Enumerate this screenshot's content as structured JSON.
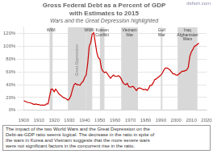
{
  "chart_data": {
    "type": "line",
    "title": [
      "Gross Federal Debt as a Percent of GDP",
      "with Estimates to 2015"
    ],
    "subtitle": "Wars and the Great Depression highlighted",
    "watermark": "dshort.com",
    "annotation": "The impact of the two World Wars and the Great Depression on the\nDebt-as-GDP ratio seems logical. The decrease in the ratio in spite of\nthe wars in Korea and Vietnam suggests that the more severe wars\nwere not significant factors in the concurrent rise in the ratio.",
    "color": "#cc0000",
    "span_color": "#d8d8d8",
    "spans": [
      {
        "start": 1917,
        "end": 1919,
        "label": "WWI"
      },
      {
        "start": 1929,
        "end": 1941,
        "label": "Great Depression"
      },
      {
        "start": 1941,
        "end": 1945,
        "label": "WWII"
      },
      {
        "start": 1950,
        "end": 1953,
        "label": "Korean\nConflict"
      },
      {
        "start": 1964,
        "end": 1975,
        "label": "Vietnam\nWar"
      },
      {
        "start": 1990,
        "end": 1991,
        "label": "Gulf\nWar"
      },
      {
        "start": 2001,
        "end": 2014,
        "label": "Iraq\nAfghanistan\nWars"
      }
    ],
    "x": [
      1900,
      1901,
      1902,
      1903,
      1904,
      1905,
      1906,
      1907,
      1908,
      1909,
      1910,
      1911,
      1912,
      1913,
      1914,
      1915,
      1916,
      1917,
      1918,
      1919,
      1920,
      1921,
      1922,
      1923,
      1924,
      1925,
      1926,
      1927,
      1928,
      1929,
      1930,
      1931,
      1932,
      1933,
      1934,
      1935,
      1936,
      1937,
      1938,
      1939,
      1940,
      1941,
      1942,
      1943,
      1944,
      1945,
      1946,
      1947,
      1948,
      1949,
      1950,
      1951,
      1952,
      1953,
      1954,
      1955,
      1956,
      1957,
      1958,
      1959,
      1960,
      1961,
      1962,
      1963,
      1964,
      1965,
      1966,
      1967,
      1968,
      1969,
      1970,
      1971,
      1972,
      1973,
      1974,
      1975,
      1976,
      1977,
      1978,
      1979,
      1980,
      1981,
      1982,
      1983,
      1984,
      1985,
      1986,
      1987,
      1988,
      1989,
      1990,
      1991,
      1992,
      1993,
      1994,
      1995,
      1996,
      1997,
      1998,
      1999,
      2000,
      2001,
      2002,
      2003,
      2004,
      2005,
      2006,
      2007,
      2008,
      2009,
      2010,
      2011,
      2012,
      2013,
      2014,
      2015
    ],
    "values": [
      15,
      14,
      13,
      12,
      12,
      11,
      10,
      9,
      10,
      9,
      9,
      8,
      8,
      8,
      8,
      10,
      10,
      22,
      33,
      33,
      29,
      33,
      30,
      26,
      24,
      22,
      20,
      19,
      18,
      16,
      18,
      23,
      32,
      40,
      42,
      40,
      40,
      39,
      43,
      45,
      51,
      55,
      73,
      100,
      106,
      119,
      121,
      106,
      90,
      82,
      80,
      66,
      61,
      59,
      60,
      57,
      53,
      50,
      53,
      55,
      53,
      53,
      54,
      53,
      49,
      44,
      41,
      40,
      42,
      37,
      36,
      37,
      37,
      34,
      31,
      34,
      35,
      34,
      33,
      32,
      33,
      31,
      34,
      39,
      39,
      43,
      48,
      49,
      51,
      53,
      55,
      58,
      63,
      66,
      66,
      65,
      63,
      60,
      57,
      57,
      55,
      55,
      57,
      59,
      61,
      61,
      62,
      63,
      67,
      84,
      91,
      95,
      100,
      101,
      103,
      105
    ],
    "xlim": [
      1900,
      2020
    ],
    "xticks": [
      1900,
      1910,
      1920,
      1930,
      1940,
      1950,
      1960,
      1970,
      1980,
      1990,
      2000,
      2010,
      2020
    ],
    "ylim": [
      0,
      130
    ],
    "yticks": [
      {
        "value": 0,
        "label": "0%"
      },
      {
        "value": 20,
        "label": "20%"
      },
      {
        "value": 40,
        "label": "40%"
      },
      {
        "value": 60,
        "label": "60%"
      },
      {
        "value": 80,
        "label": "80%"
      },
      {
        "value": 100,
        "label": "100%"
      },
      {
        "value": 120,
        "label": "120%"
      }
    ],
    "grid": "y"
  }
}
